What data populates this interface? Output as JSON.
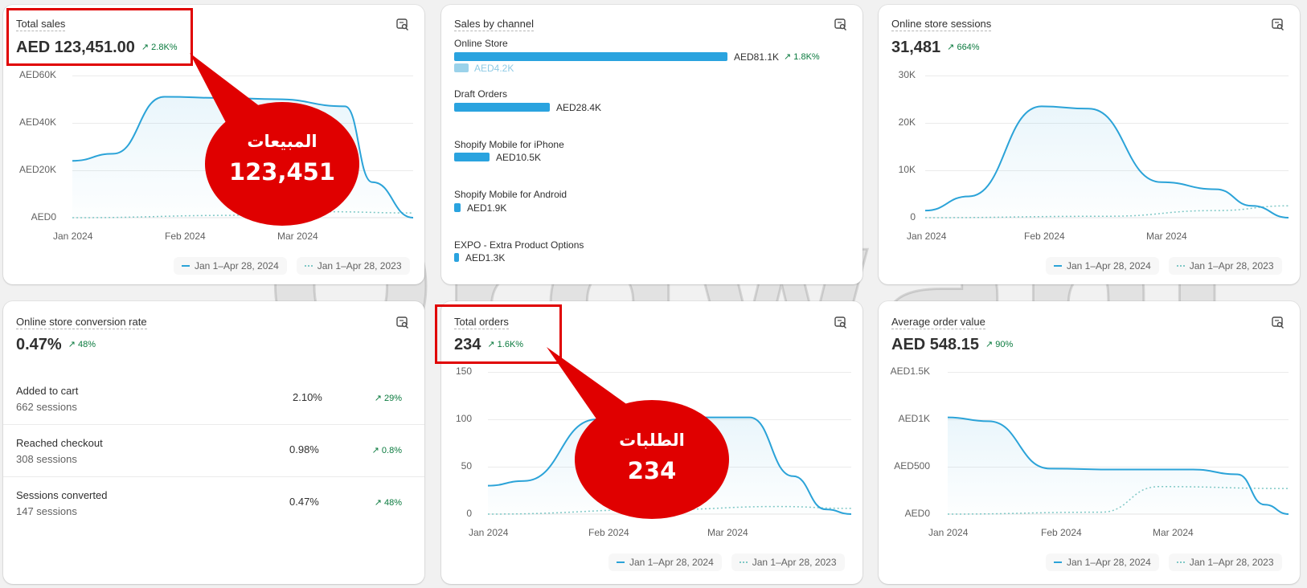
{
  "cards": {
    "total_sales": {
      "title": "Total sales",
      "value": "AED 123,451.00",
      "delta": "↗ 2.8K%",
      "y_ticks": [
        "AED60K",
        "AED40K",
        "AED20K",
        "AED0"
      ],
      "x_ticks": [
        "Jan 2024",
        "Feb 2024",
        "Mar 2024"
      ],
      "legend_current": "Jan 1–Apr 28, 2024",
      "legend_previous": "Jan 1–Apr 28, 2023"
    },
    "sales_by_channel": {
      "title": "Sales by channel",
      "channels": [
        {
          "name": "Online Store",
          "value": "AED81.1K",
          "delta": "↗ 1.8K%",
          "prev_value": "AED4.2K"
        },
        {
          "name": "Draft Orders",
          "value": "AED28.4K"
        },
        {
          "name": "Shopify Mobile for iPhone",
          "value": "AED10.5K"
        },
        {
          "name": "Shopify Mobile for Android",
          "value": "AED1.9K"
        },
        {
          "name": "EXPO - Extra Product Options",
          "value": "AED1.3K"
        }
      ]
    },
    "sessions": {
      "title": "Online store sessions",
      "value": "31,481",
      "delta": "↗ 664%",
      "y_ticks": [
        "30K",
        "20K",
        "10K",
        "0"
      ],
      "x_ticks": [
        "Jan 2024",
        "Feb 2024",
        "Mar 2024"
      ],
      "legend_current": "Jan 1–Apr 28, 2024",
      "legend_previous": "Jan 1–Apr 28, 2023"
    },
    "conversion": {
      "title": "Online store conversion rate",
      "value": "0.47%",
      "delta": "↗ 48%",
      "rows": [
        {
          "label": "Added to cart",
          "sessions": "662 sessions",
          "pct": "2.10%",
          "delta": "↗ 29%"
        },
        {
          "label": "Reached checkout",
          "sessions": "308 sessions",
          "pct": "0.98%",
          "delta": "↗ 0.8%"
        },
        {
          "label": "Sessions converted",
          "sessions": "147 sessions",
          "pct": "0.47%",
          "delta": "↗ 48%"
        }
      ]
    },
    "total_orders": {
      "title": "Total orders",
      "value": "234",
      "delta": "↗ 1.6K%",
      "y_ticks": [
        "150",
        "100",
        "50",
        "0"
      ],
      "x_ticks": [
        "Jan 2024",
        "Feb 2024",
        "Mar 2024"
      ],
      "legend_current": "Jan 1–Apr 28, 2024",
      "legend_previous": "Jan 1–Apr 28, 2023"
    },
    "aov": {
      "title": "Average order value",
      "value": "AED 548.15",
      "delta": "↗ 90%",
      "y_ticks": [
        "AED1.5K",
        "AED1K",
        "AED500",
        "AED0"
      ],
      "x_ticks": [
        "Jan 2024",
        "Feb 2024",
        "Mar 2024"
      ],
      "legend_current": "Jan 1–Apr 28, 2024",
      "legend_previous": "Jan 1–Apr 28, 2023"
    }
  },
  "callouts": {
    "sales": {
      "line1": "المبيعات",
      "line2": "123,451"
    },
    "orders": {
      "line1": "الطلبات",
      "line2": "234"
    }
  },
  "watermark": "Orgwani",
  "colors": {
    "current_series": "#2ba3d8",
    "previous_series": "#7fc8c6",
    "callout_red": "#e00000",
    "delta_green": "#0a7a3e"
  },
  "chart_data": [
    {
      "type": "area",
      "ylim": [
        0,
        60000
      ],
      "series": [
        {
          "name": "Jan 1–Apr 28, 2024",
          "points": [
            [
              0,
              24000
            ],
            [
              0.12,
              27000
            ],
            [
              0.27,
              51000
            ],
            [
              0.45,
              50500
            ],
            [
              0.6,
              50000
            ],
            [
              0.8,
              47000
            ],
            [
              0.88,
              15000
            ],
            [
              1.0,
              0
            ]
          ]
        },
        {
          "name": "Jan 1–Apr 28, 2023",
          "points": [
            [
              0,
              0
            ],
            [
              0.5,
              1000
            ],
            [
              0.75,
              2500
            ],
            [
              1.0,
              2000
            ]
          ]
        }
      ]
    },
    {
      "type": "area",
      "ylim": [
        0,
        30000
      ],
      "series": [
        {
          "name": "Jan 1–Apr 28, 2024",
          "points": [
            [
              0,
              1500
            ],
            [
              0.12,
              4500
            ],
            [
              0.32,
              23500
            ],
            [
              0.45,
              23000
            ],
            [
              0.65,
              7500
            ],
            [
              0.8,
              6000
            ],
            [
              0.9,
              2500
            ],
            [
              1.0,
              0
            ]
          ]
        },
        {
          "name": "Jan 1–Apr 28, 2023",
          "points": [
            [
              0,
              0
            ],
            [
              0.5,
              300
            ],
            [
              0.8,
              1500
            ],
            [
              1.0,
              2500
            ]
          ]
        }
      ]
    },
    {
      "type": "area",
      "ylim": [
        0,
        150
      ],
      "series": [
        {
          "name": "Jan 1–Apr 28, 2024",
          "points": [
            [
              0,
              30
            ],
            [
              0.1,
              35
            ],
            [
              0.3,
              100
            ],
            [
              0.45,
              102
            ],
            [
              0.72,
              102
            ],
            [
              0.84,
              40
            ],
            [
              0.93,
              5
            ],
            [
              1.0,
              0
            ]
          ]
        },
        {
          "name": "Jan 1–Apr 28, 2023",
          "points": [
            [
              0,
              0
            ],
            [
              0.5,
              5
            ],
            [
              0.8,
              8
            ],
            [
              1.0,
              6
            ]
          ]
        }
      ]
    },
    {
      "type": "area",
      "ylim": [
        0,
        1500
      ],
      "series": [
        {
          "name": "Jan 1–Apr 28, 2024",
          "points": [
            [
              0,
              1020
            ],
            [
              0.12,
              980
            ],
            [
              0.3,
              480
            ],
            [
              0.5,
              470
            ],
            [
              0.72,
              470
            ],
            [
              0.85,
              420
            ],
            [
              0.93,
              100
            ],
            [
              1.0,
              0
            ]
          ]
        },
        {
          "name": "Jan 1–Apr 28, 2023",
          "points": [
            [
              0,
              0
            ],
            [
              0.45,
              20
            ],
            [
              0.62,
              290
            ],
            [
              1.0,
              270
            ]
          ]
        }
      ]
    }
  ]
}
